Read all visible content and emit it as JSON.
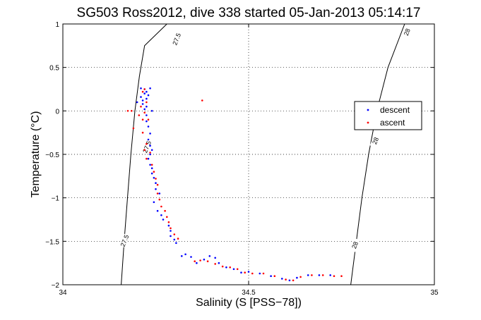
{
  "chart_data": {
    "type": "scatter",
    "title": "SG503 Ross2012, dive 338 started 05-Jan-2013 05:14:17",
    "xlabel": "Salinity (S [PSS−78])",
    "ylabel": "Temperature (°C)",
    "xlim": [
      34,
      35
    ],
    "ylim": [
      -2,
      1
    ],
    "xticks": [
      34,
      34.5,
      35
    ],
    "xtick_labels": [
      "34",
      "34.5",
      "35"
    ],
    "yticks": [
      -2,
      -1.5,
      -1,
      -0.5,
      0,
      0.5,
      1
    ],
    "ytick_labels": [
      "−2",
      "−1.5",
      "−1",
      "−0.5",
      "0",
      "0.5",
      "1"
    ],
    "grid": true,
    "legend_position": "upper-right",
    "series": [
      {
        "name": "descent",
        "color": "#0000ff",
        "points": [
          [
            34.21,
            0.26
          ],
          [
            34.22,
            0.25
          ],
          [
            34.235,
            0.26
          ],
          [
            34.225,
            0.22
          ],
          [
            34.22,
            0.2
          ],
          [
            34.23,
            0.18
          ],
          [
            34.21,
            0.16
          ],
          [
            34.225,
            0.14
          ],
          [
            34.215,
            0.12
          ],
          [
            34.2,
            0.1
          ],
          [
            34.215,
            0.08
          ],
          [
            34.225,
            0.05
          ],
          [
            34.22,
            0.02
          ],
          [
            34.24,
            0.0
          ],
          [
            34.225,
            -0.05
          ],
          [
            34.225,
            -0.12
          ],
          [
            34.23,
            -0.18
          ],
          [
            34.235,
            -0.26
          ],
          [
            34.23,
            -0.33
          ],
          [
            34.235,
            -0.4
          ],
          [
            34.24,
            -0.45
          ],
          [
            34.235,
            -0.5
          ],
          [
            34.23,
            -0.55
          ],
          [
            34.235,
            -0.62
          ],
          [
            34.24,
            -0.66
          ],
          [
            34.24,
            -0.72
          ],
          [
            34.245,
            -0.77
          ],
          [
            34.25,
            -0.83
          ],
          [
            34.25,
            -0.9
          ],
          [
            34.26,
            -0.95
          ],
          [
            34.245,
            -1.05
          ],
          [
            34.255,
            -1.15
          ],
          [
            34.265,
            -1.2
          ],
          [
            34.27,
            -1.25
          ],
          [
            34.285,
            -1.32
          ],
          [
            34.29,
            -1.38
          ],
          [
            34.29,
            -1.44
          ],
          [
            34.3,
            -1.48
          ],
          [
            34.305,
            -1.52
          ],
          [
            34.32,
            -1.67
          ],
          [
            34.33,
            -1.65
          ],
          [
            34.345,
            -1.68
          ],
          [
            34.36,
            -1.75
          ],
          [
            34.38,
            -1.71
          ],
          [
            34.395,
            -1.67
          ],
          [
            34.41,
            -1.69
          ],
          [
            34.42,
            -1.75
          ],
          [
            34.44,
            -1.8
          ],
          [
            34.46,
            -1.82
          ],
          [
            34.48,
            -1.86
          ],
          [
            34.5,
            -1.85
          ],
          [
            34.53,
            -1.87
          ],
          [
            34.56,
            -1.9
          ],
          [
            34.59,
            -1.93
          ],
          [
            34.61,
            -1.95
          ],
          [
            34.63,
            -1.92
          ],
          [
            34.66,
            -1.89
          ],
          [
            34.69,
            -1.89
          ],
          [
            34.72,
            -1.89
          ]
        ]
      },
      {
        "name": "ascent",
        "color": "#ff0000",
        "points": [
          [
            34.175,
            0.0
          ],
          [
            34.185,
            0.0
          ],
          [
            34.205,
            -0.05
          ],
          [
            34.215,
            -0.1
          ],
          [
            34.22,
            0.25
          ],
          [
            34.215,
            0.22
          ],
          [
            34.225,
            0.1
          ],
          [
            34.21,
            0.05
          ],
          [
            34.22,
            -0.02
          ],
          [
            34.23,
            -0.1
          ],
          [
            34.19,
            -0.2
          ],
          [
            34.215,
            -0.25
          ],
          [
            34.225,
            -0.38
          ],
          [
            34.22,
            -0.45
          ],
          [
            34.235,
            -0.48
          ],
          [
            34.225,
            -0.55
          ],
          [
            34.24,
            -0.62
          ],
          [
            34.245,
            -0.7
          ],
          [
            34.25,
            -0.78
          ],
          [
            34.255,
            -0.85
          ],
          [
            34.255,
            -0.95
          ],
          [
            34.26,
            -1.02
          ],
          [
            34.265,
            -1.1
          ],
          [
            34.275,
            -1.15
          ],
          [
            34.28,
            -1.22
          ],
          [
            34.285,
            -1.28
          ],
          [
            34.29,
            -1.35
          ],
          [
            34.3,
            -1.42
          ],
          [
            34.31,
            -1.47
          ],
          [
            34.355,
            -1.73
          ],
          [
            34.37,
            -1.72
          ],
          [
            34.39,
            -1.73
          ],
          [
            34.41,
            -1.76
          ],
          [
            34.43,
            -1.79
          ],
          [
            34.45,
            -1.8
          ],
          [
            34.47,
            -1.82
          ],
          [
            34.49,
            -1.86
          ],
          [
            34.51,
            -1.87
          ],
          [
            34.54,
            -1.87
          ],
          [
            34.57,
            -1.9
          ],
          [
            34.6,
            -1.94
          ],
          [
            34.62,
            -1.95
          ],
          [
            34.64,
            -1.91
          ],
          [
            34.67,
            -1.89
          ],
          [
            34.7,
            -1.89
          ],
          [
            34.73,
            -1.9
          ],
          [
            34.75,
            -1.9
          ],
          [
            34.375,
            0.12
          ]
        ]
      }
    ],
    "contours": [
      {
        "label": "27.5",
        "points": [
          [
            34.157,
            -2.0
          ],
          [
            34.165,
            -1.5
          ],
          [
            34.174,
            -1.0
          ],
          [
            34.183,
            -0.5
          ],
          [
            34.194,
            0.0
          ],
          [
            34.206,
            0.4
          ],
          [
            34.22,
            0.75
          ],
          [
            34.28,
            1.0
          ]
        ],
        "label_positions": [
          [
            34.17,
            -1.5
          ],
          [
            34.23,
            -0.42
          ],
          [
            34.31,
            0.82
          ]
        ]
      },
      {
        "label": "28",
        "points": [
          [
            34.775,
            -2.0
          ],
          [
            34.79,
            -1.5
          ],
          [
            34.805,
            -1.0
          ],
          [
            34.823,
            -0.5
          ],
          [
            34.845,
            0.0
          ],
          [
            34.875,
            0.5
          ],
          [
            34.92,
            1.0
          ]
        ],
        "label_positions": [
          [
            34.79,
            -1.55
          ],
          [
            34.845,
            -0.35
          ],
          [
            34.93,
            0.9
          ]
        ]
      }
    ]
  }
}
